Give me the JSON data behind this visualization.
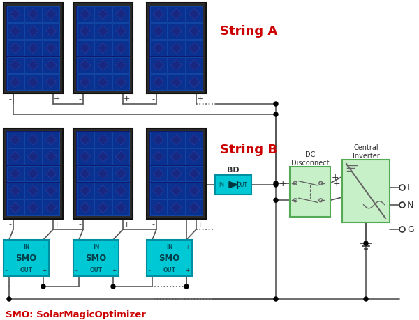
{
  "bg": "#ffffff",
  "panel_frame": "#2b2b2b",
  "panel_inner": "#0f1a6e",
  "cell_bg": "#0d3a99",
  "cell_border": "#1255bb",
  "diamond_fill": "#1a2880",
  "diamond_edge": "#2d3da0",
  "smo_fill": "#00c8d4",
  "smo_border": "#008fa0",
  "green_fill": "#c8f0c8",
  "green_border": "#55aa55",
  "bd_fill": "#00c8d4",
  "bd_border": "#008fa0",
  "wire": "#555555",
  "dot": "#000000",
  "red": "#cc0000",
  "dark": "#333333",
  "gray": "#777777",
  "string_a": "String A",
  "string_b": "String B",
  "smo_label": "SMO: SolarMagicOptimizer",
  "dc_title": "DC\nDisconnect",
  "inv_title": "Central\nInverter"
}
